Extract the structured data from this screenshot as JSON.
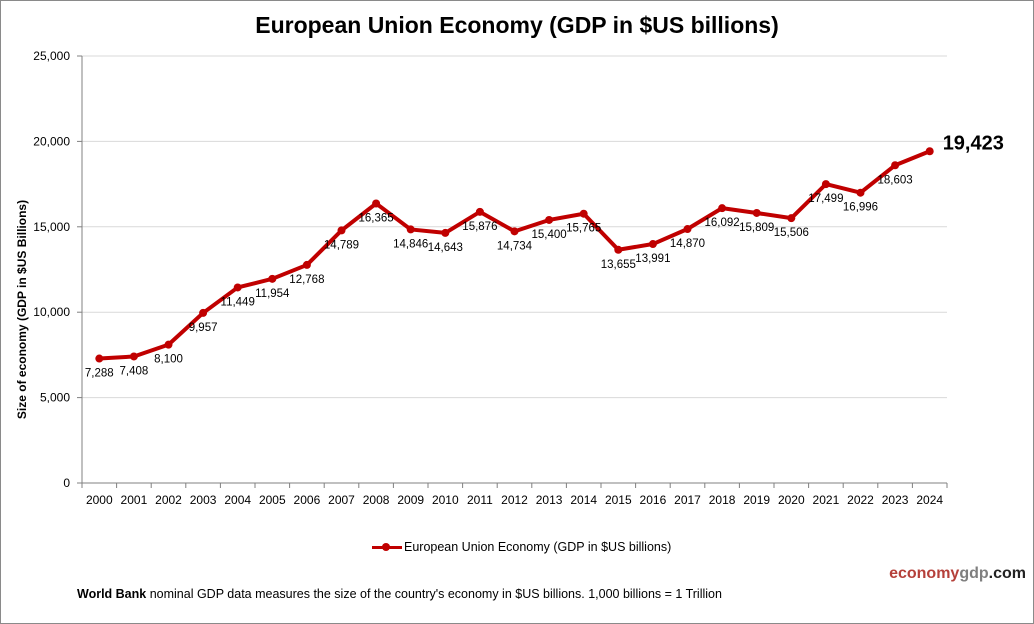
{
  "chart_data": {
    "type": "line",
    "title": "European Union Economy (GDP in $US billions)",
    "xlabel": "",
    "ylabel": "Size of economy (GDP in $US Billions)",
    "categories": [
      "2000",
      "2001",
      "2002",
      "2003",
      "2004",
      "2005",
      "2006",
      "2007",
      "2008",
      "2009",
      "2010",
      "2011",
      "2012",
      "2013",
      "2014",
      "2015",
      "2016",
      "2017",
      "2018",
      "2019",
      "2020",
      "2021",
      "2022",
      "2023",
      "2024"
    ],
    "series": [
      {
        "name": "European Union Economy (GDP in $US billions)",
        "values": [
          7288,
          7408,
          8100,
          9957,
          11449,
          11954,
          12768,
          14789,
          16365,
          14846,
          14643,
          15876,
          14734,
          15400,
          15765,
          13655,
          13991,
          14870,
          16092,
          15809,
          15506,
          17499,
          16996,
          18603,
          19423
        ],
        "labels": [
          "7,288",
          "7,408",
          "8,100",
          "9,957",
          "11,449",
          "11,954",
          "12,768",
          "14,789",
          "16,365",
          "14,846",
          "14,643",
          "15,876",
          "14,734",
          "15,400",
          "15,765",
          "13,655",
          "13,991",
          "14,870",
          "16,092",
          "15,809",
          "15,506",
          "17,499",
          "16,996",
          "18,603",
          "19,423"
        ],
        "color": "#c00000"
      }
    ],
    "ylim": [
      0,
      25000
    ],
    "yticks": [
      "0",
      "5,000",
      "10,000",
      "15,000",
      "20,000",
      "25,000"
    ],
    "grid": true,
    "legend": "bottom"
  },
  "footer": {
    "source_bold": "World Bank",
    "source_text": " nominal GDP data  measures the size of the country's economy in $US billions. 1,000 billions = 1 Trillion",
    "logo_a": "economy",
    "logo_b": "gdp",
    "logo_c": ".com"
  }
}
